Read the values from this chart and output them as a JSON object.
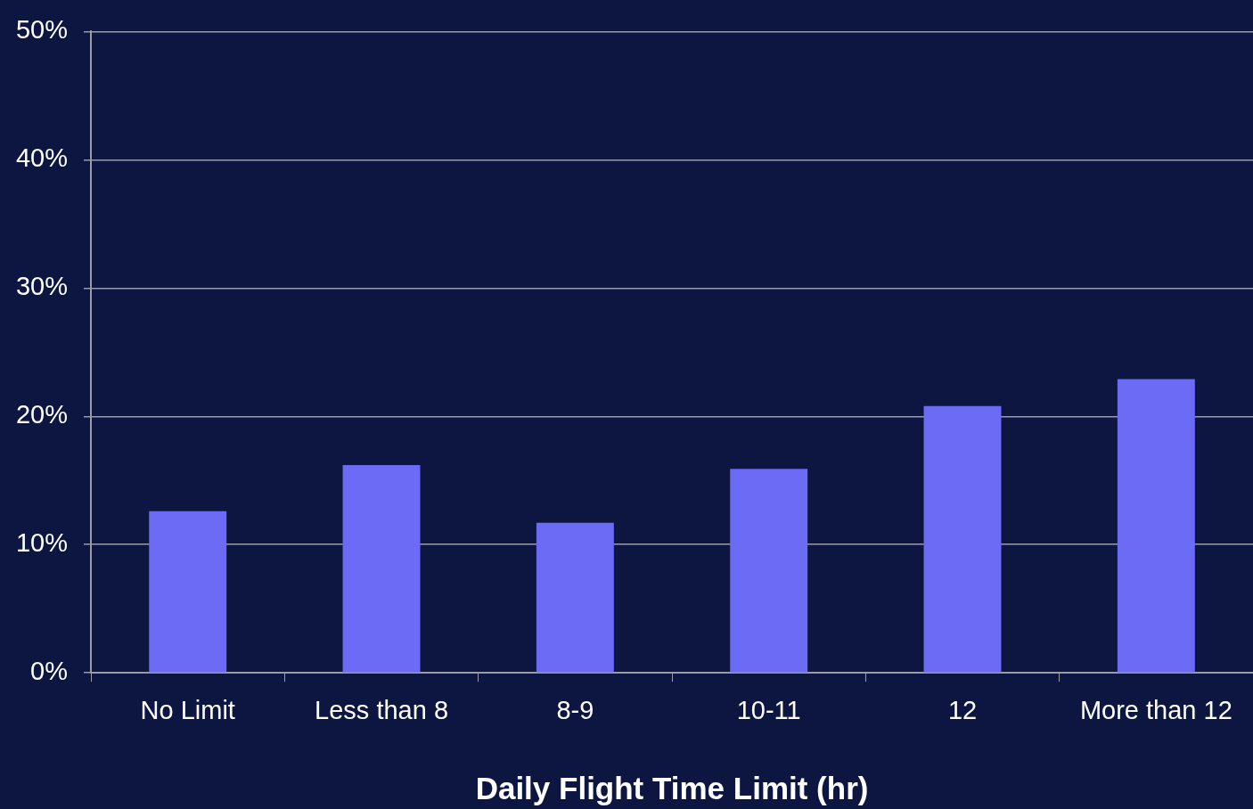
{
  "chart_data": {
    "type": "bar",
    "xlabel": "Daily Flight Time Limit (hr)",
    "categories": [
      "No Limit",
      "Less than 8",
      "8-9",
      "10-11",
      "12",
      "More than 12"
    ],
    "values": [
      12.6,
      16.2,
      11.7,
      15.9,
      20.8,
      22.9
    ],
    "color": "#6b6bf5",
    "ylim": [
      0,
      50
    ],
    "yticks": [
      {
        "value": 0,
        "label": "0%"
      },
      {
        "value": 10,
        "label": "10%"
      },
      {
        "value": 20,
        "label": "20%"
      },
      {
        "value": 30,
        "label": "30%"
      },
      {
        "value": 40,
        "label": "40%"
      },
      {
        "value": 50,
        "label": "50%"
      }
    ],
    "grid": "y",
    "legend": false
  }
}
